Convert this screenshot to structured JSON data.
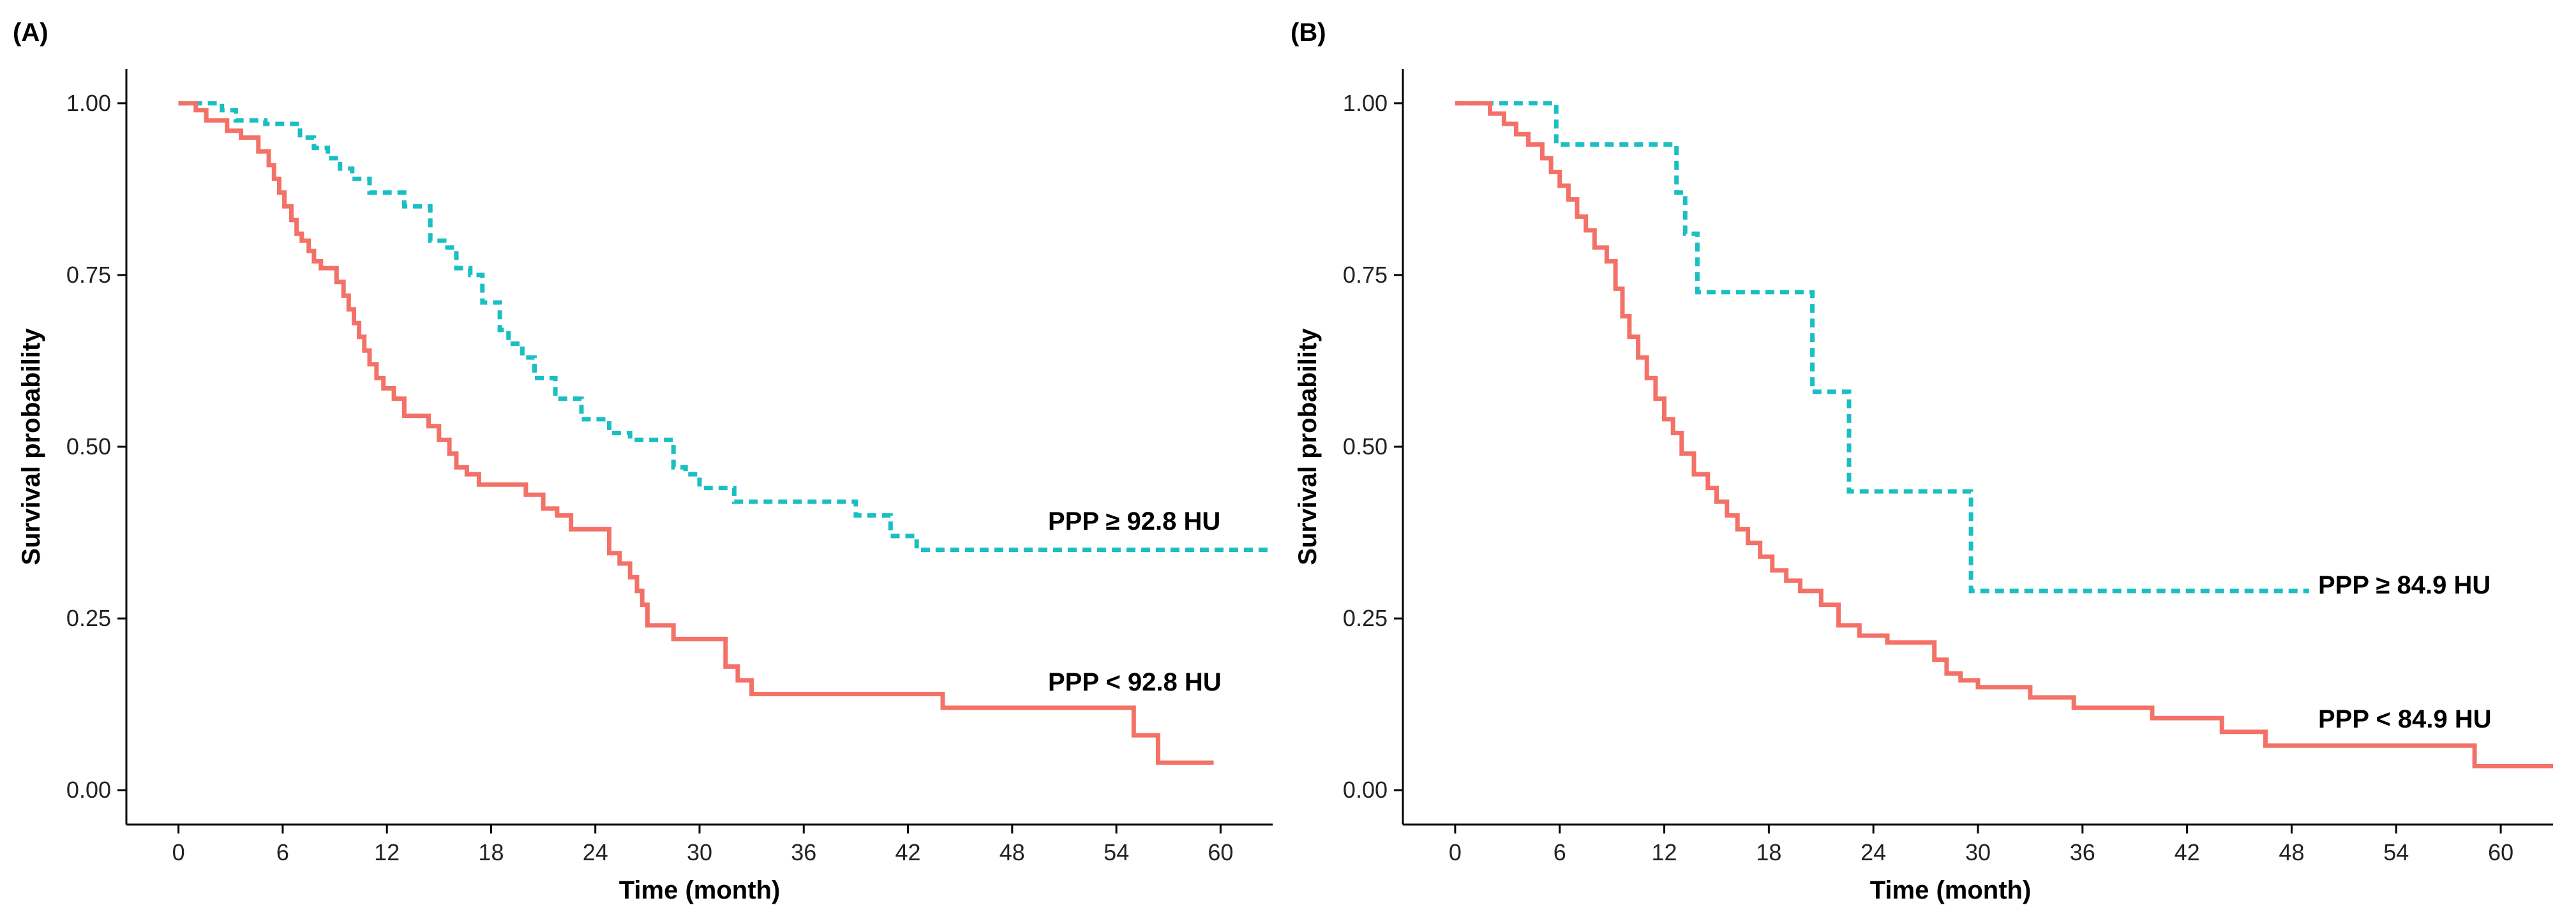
{
  "chart_data": [
    {
      "type": "line",
      "panel_label": "(A)",
      "xlabel": "Time (month)",
      "ylabel": "Survival probability",
      "xlim": [
        -3,
        63
      ],
      "ylim": [
        -0.05,
        1.05
      ],
      "xticks": [
        0,
        6,
        12,
        18,
        24,
        30,
        36,
        42,
        48,
        54,
        60
      ],
      "xtick_labels": [
        "0",
        "6",
        "12",
        "18",
        "24",
        "30",
        "36",
        "42",
        "48",
        "54",
        "60"
      ],
      "yticks": [
        0,
        0.25,
        0.5,
        0.75,
        1
      ],
      "ytick_labels": [
        "0.00",
        "0.25",
        "0.50",
        "0.75",
        "1.00"
      ],
      "series": [
        {
          "name": "PPP ≥ 92.8 HU",
          "label": "PPP ≥ 92.8 HU",
          "color": "#1ABFC4",
          "dash": "dashed",
          "step_x": [
            0,
            2.5,
            3.3,
            5,
            7,
            7.8,
            8.6,
            9.3,
            10.0,
            11.0,
            12.0,
            13.0,
            14.5,
            15.3,
            16.0,
            16.8,
            17.5,
            18.5,
            19.0,
            19.8,
            20.5,
            21.7,
            23.2,
            24.8,
            26.0,
            28.5,
            29.2,
            30.0,
            32.0,
            39.0,
            41.0,
            42.5,
            63
          ],
          "step_y": [
            1.0,
            0.99,
            0.975,
            0.97,
            0.95,
            0.935,
            0.92,
            0.905,
            0.89,
            0.87,
            0.87,
            0.85,
            0.8,
            0.79,
            0.76,
            0.75,
            0.71,
            0.67,
            0.65,
            0.63,
            0.6,
            0.57,
            0.54,
            0.52,
            0.51,
            0.47,
            0.46,
            0.44,
            0.42,
            0.4,
            0.37,
            0.35,
            0.35
          ]
        },
        {
          "name": "PPP < 92.8 HU",
          "label": "PPP < 92.8 HU",
          "color": "#F37167",
          "dash": "solid",
          "step_x": [
            0,
            1.0,
            1.6,
            2.8,
            3.6,
            4.6,
            5.2,
            5.5,
            5.8,
            6.1,
            6.5,
            6.8,
            7.1,
            7.5,
            7.8,
            8.2,
            9.1,
            9.5,
            9.8,
            10.1,
            10.4,
            10.7,
            11.0,
            11.4,
            11.8,
            12.4,
            13.0,
            14.4,
            15.0,
            15.6,
            16.0,
            16.6,
            17.3,
            20.0,
            21.0,
            21.8,
            22.6,
            24.8,
            25.4,
            26.0,
            26.4,
            26.7,
            27.0,
            28.5,
            29.0,
            31.5,
            32.2,
            33.0,
            44.0,
            55.0,
            56.4,
            59.6
          ],
          "step_y": [
            1.0,
            0.99,
            0.975,
            0.96,
            0.95,
            0.93,
            0.91,
            0.89,
            0.87,
            0.85,
            0.83,
            0.81,
            0.8,
            0.785,
            0.77,
            0.76,
            0.74,
            0.72,
            0.7,
            0.68,
            0.66,
            0.64,
            0.62,
            0.6,
            0.585,
            0.57,
            0.545,
            0.53,
            0.51,
            0.49,
            0.47,
            0.46,
            0.445,
            0.43,
            0.41,
            0.4,
            0.38,
            0.345,
            0.33,
            0.31,
            0.29,
            0.27,
            0.24,
            0.22,
            0.22,
            0.18,
            0.16,
            0.14,
            0.12,
            0.08,
            0.04,
            0.04
          ]
        }
      ]
    },
    {
      "type": "line",
      "panel_label": "(B)",
      "xlabel": "Time (month)",
      "ylabel": "Survival probability",
      "xlim": [
        -3,
        63
      ],
      "ylim": [
        -0.05,
        1.05
      ],
      "xticks": [
        0,
        6,
        12,
        18,
        24,
        30,
        36,
        42,
        48,
        54,
        60
      ],
      "xtick_labels": [
        "0",
        "6",
        "12",
        "18",
        "24",
        "30",
        "36",
        "42",
        "48",
        "54",
        "60"
      ],
      "yticks": [
        0,
        0.25,
        0.5,
        0.75,
        1
      ],
      "ytick_labels": [
        "0.00",
        "0.25",
        "0.50",
        "0.75",
        "1.00"
      ],
      "series": [
        {
          "name": "PPP ≥ 84.9 HU",
          "label": "PPP ≥ 84.9 HU",
          "color": "#1ABFC4",
          "dash": "dashed",
          "step_x": [
            0,
            5.8,
            12.7,
            13.2,
            13.9,
            20.5,
            22.6,
            29.6,
            49.0
          ],
          "step_y": [
            1.0,
            0.94,
            0.87,
            0.81,
            0.725,
            0.58,
            0.435,
            0.29,
            0.29
          ]
        },
        {
          "name": "PPP < 84.9 HU",
          "label": "PPP < 84.9 HU",
          "color": "#F37167",
          "dash": "solid",
          "step_x": [
            0,
            2,
            2.8,
            3.5,
            4.2,
            5.0,
            5.5,
            6.0,
            6.5,
            7.0,
            7.5,
            8.0,
            8.7,
            9.2,
            9.6,
            10.0,
            10.5,
            11.0,
            11.5,
            12.0,
            12.5,
            13.0,
            13.7,
            14.5,
            15.0,
            15.6,
            16.2,
            16.8,
            17.5,
            18.2,
            19.0,
            19.8,
            21.0,
            22.0,
            23.2,
            24.8,
            27.5,
            28.2,
            29.0,
            30.0,
            33.0,
            35.5,
            40.0,
            44.0,
            46.5,
            58.5,
            63
          ],
          "step_y": [
            1.0,
            0.985,
            0.97,
            0.955,
            0.94,
            0.92,
            0.9,
            0.88,
            0.86,
            0.835,
            0.815,
            0.79,
            0.77,
            0.73,
            0.69,
            0.66,
            0.63,
            0.6,
            0.57,
            0.54,
            0.52,
            0.49,
            0.46,
            0.44,
            0.42,
            0.4,
            0.38,
            0.36,
            0.34,
            0.32,
            0.305,
            0.29,
            0.27,
            0.24,
            0.225,
            0.215,
            0.19,
            0.17,
            0.16,
            0.15,
            0.135,
            0.12,
            0.105,
            0.085,
            0.065,
            0.035,
            0.035
          ]
        }
      ]
    }
  ]
}
